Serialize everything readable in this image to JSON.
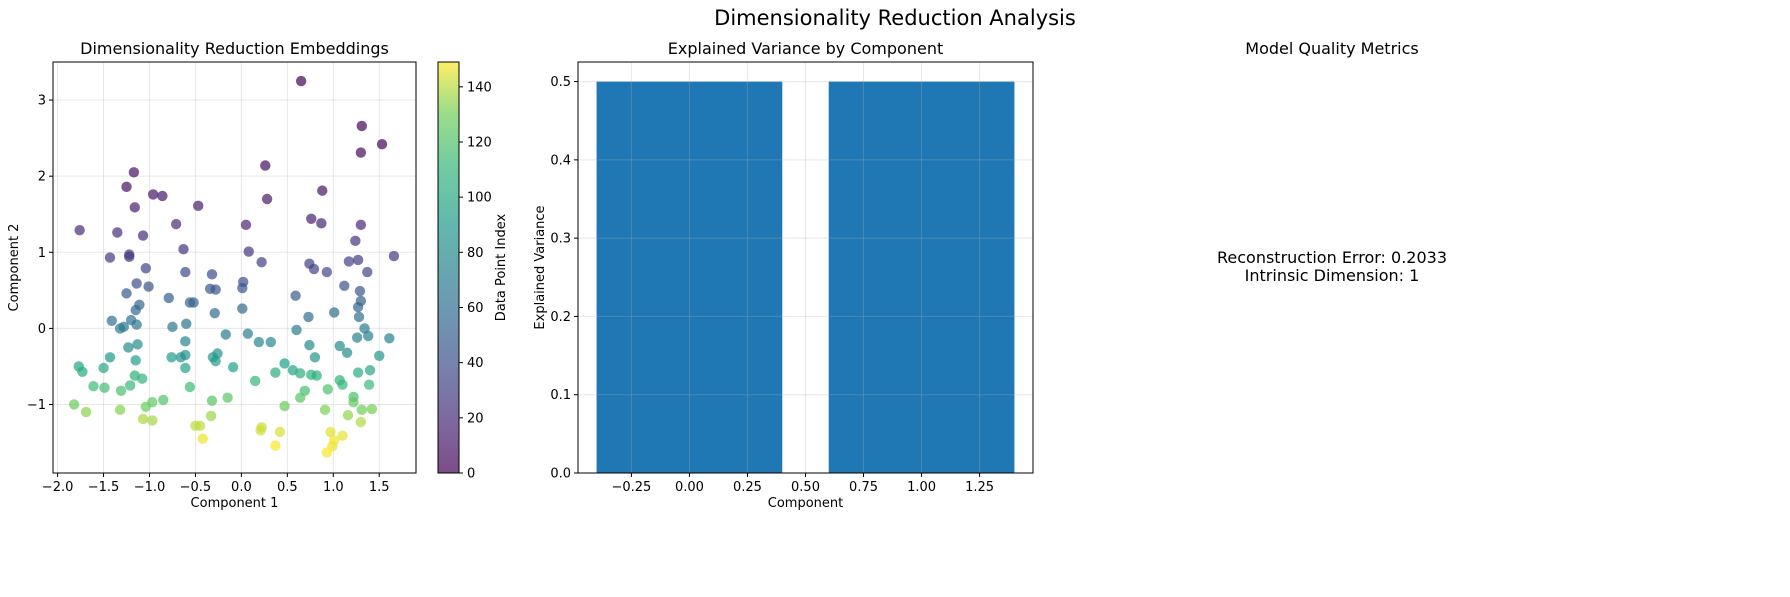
{
  "figure": {
    "title": "Dimensionality Reduction Analysis"
  },
  "chart_data": [
    {
      "type": "scatter",
      "title": "Dimensionality Reduction Embeddings",
      "xlabel": "Component 1",
      "ylabel": "Component 2",
      "xlim": [
        -2.05,
        1.9
      ],
      "ylim": [
        -1.9,
        3.5
      ],
      "xticks": [
        -2.0,
        -1.5,
        -1.0,
        -0.5,
        0.0,
        0.5,
        1.0,
        1.5
      ],
      "xtick_labels": [
        "−2.0",
        "−1.5",
        "−1.0",
        "−0.5",
        "0.0",
        "0.5",
        "1.0",
        "1.5"
      ],
      "yticks": [
        -1,
        0,
        1,
        2,
        3
      ],
      "ytick_labels": [
        "−1",
        "0",
        "1",
        "2",
        "3"
      ],
      "grid": true,
      "colormap": "viridis",
      "colorbar": {
        "label": "Data Point Index",
        "range": [
          0,
          149
        ],
        "ticks": [
          0,
          20,
          40,
          60,
          80,
          100,
          120,
          140
        ],
        "tick_labels": [
          "0",
          "20",
          "40",
          "60",
          "80",
          "100",
          "120",
          "140"
        ]
      },
      "points": [
        [
          0.65,
          3.25,
          0
        ],
        [
          1.31,
          2.66,
          2
        ],
        [
          1.53,
          2.42,
          3
        ],
        [
          1.3,
          2.31,
          5
        ],
        [
          0.26,
          2.14,
          6
        ],
        [
          -1.17,
          2.05,
          7
        ],
        [
          -1.25,
          1.86,
          8
        ],
        [
          0.88,
          1.81,
          9
        ],
        [
          -0.96,
          1.76,
          10
        ],
        [
          -0.86,
          1.74,
          11
        ],
        [
          0.28,
          1.7,
          12
        ],
        [
          -0.47,
          1.61,
          13
        ],
        [
          -1.16,
          1.59,
          14
        ],
        [
          0.76,
          1.44,
          15
        ],
        [
          0.87,
          1.38,
          16
        ],
        [
          0.05,
          1.36,
          17
        ],
        [
          1.3,
          1.36,
          18
        ],
        [
          -0.71,
          1.37,
          19
        ],
        [
          -1.76,
          1.29,
          20
        ],
        [
          -1.35,
          1.26,
          21
        ],
        [
          -1.07,
          1.22,
          22
        ],
        [
          1.24,
          1.15,
          23
        ],
        [
          -0.63,
          1.04,
          24
        ],
        [
          0.08,
          1.01,
          25
        ],
        [
          -1.22,
          0.97,
          26
        ],
        [
          1.66,
          0.95,
          27
        ],
        [
          -1.43,
          0.93,
          28
        ],
        [
          -1.22,
          0.94,
          29
        ],
        [
          1.27,
          0.9,
          30
        ],
        [
          0.22,
          0.87,
          31
        ],
        [
          1.17,
          0.88,
          32
        ],
        [
          0.74,
          0.85,
          33
        ],
        [
          0.79,
          0.78,
          34
        ],
        [
          -1.04,
          0.79,
          35
        ],
        [
          1.37,
          0.74,
          36
        ],
        [
          0.93,
          0.74,
          37
        ],
        [
          -0.32,
          0.71,
          38
        ],
        [
          -0.61,
          0.74,
          39
        ],
        [
          0.02,
          0.61,
          40
        ],
        [
          -1.14,
          0.59,
          41
        ],
        [
          1.12,
          0.56,
          42
        ],
        [
          -1.01,
          0.55,
          43
        ],
        [
          0.01,
          0.53,
          44
        ],
        [
          -0.28,
          0.51,
          45
        ],
        [
          -0.34,
          0.52,
          46
        ],
        [
          1.29,
          0.49,
          47
        ],
        [
          -1.25,
          0.46,
          48
        ],
        [
          0.59,
          0.43,
          49
        ],
        [
          -0.79,
          0.4,
          50
        ],
        [
          1.3,
          0.36,
          51
        ],
        [
          -0.56,
          0.34,
          52
        ],
        [
          -0.52,
          0.34,
          53
        ],
        [
          -1.11,
          0.31,
          54
        ],
        [
          1.27,
          0.28,
          55
        ],
        [
          0.01,
          0.26,
          56
        ],
        [
          -1.15,
          0.24,
          57
        ],
        [
          1.01,
          0.21,
          58
        ],
        [
          -0.29,
          0.2,
          59
        ],
        [
          0.73,
          0.15,
          60
        ],
        [
          1.28,
          0.15,
          61
        ],
        [
          -1.41,
          0.1,
          62
        ],
        [
          -1.2,
          0.11,
          63
        ],
        [
          -0.6,
          0.06,
          64
        ],
        [
          -1.14,
          0.05,
          65
        ],
        [
          -1.28,
          0.02,
          66
        ],
        [
          -0.75,
          0.02,
          67
        ],
        [
          -1.32,
          0.0,
          68
        ],
        [
          1.34,
          0.0,
          69
        ],
        [
          0.6,
          -0.02,
          70
        ],
        [
          -0.17,
          -0.08,
          71
        ],
        [
          0.07,
          -0.07,
          72
        ],
        [
          1.38,
          -0.1,
          73
        ],
        [
          1.26,
          -0.12,
          74
        ],
        [
          1.61,
          -0.13,
          75
        ],
        [
          -0.61,
          -0.17,
          76
        ],
        [
          0.19,
          -0.18,
          77
        ],
        [
          0.32,
          -0.18,
          78
        ],
        [
          0.74,
          -0.22,
          79
        ],
        [
          1.07,
          -0.23,
          80
        ],
        [
          -1.23,
          -0.25,
          81
        ],
        [
          -1.13,
          -0.21,
          82
        ],
        [
          1.15,
          -0.32,
          83
        ],
        [
          -0.26,
          -0.33,
          84
        ],
        [
          -0.61,
          -0.35,
          85
        ],
        [
          -0.66,
          -0.38,
          86
        ],
        [
          0.8,
          -0.38,
          87
        ],
        [
          1.5,
          -0.36,
          88
        ],
        [
          -0.31,
          -0.38,
          89
        ],
        [
          -1.43,
          -0.38,
          90
        ],
        [
          -0.76,
          -0.38,
          91
        ],
        [
          -0.28,
          -0.43,
          92
        ],
        [
          -1.15,
          -0.42,
          93
        ],
        [
          0.47,
          -0.46,
          94
        ],
        [
          -0.09,
          -0.51,
          95
        ],
        [
          -1.77,
          -0.5,
          96
        ],
        [
          -0.61,
          -0.52,
          97
        ],
        [
          0.56,
          -0.55,
          98
        ],
        [
          1.4,
          -0.55,
          99
        ],
        [
          -1.5,
          -0.52,
          100
        ],
        [
          0.37,
          -0.58,
          101
        ],
        [
          -1.73,
          -0.57,
          102
        ],
        [
          1.27,
          -0.58,
          103
        ],
        [
          0.64,
          -0.59,
          104
        ],
        [
          0.82,
          -0.62,
          105
        ],
        [
          0.76,
          -0.61,
          106
        ],
        [
          -1.16,
          -0.62,
          107
        ],
        [
          1.07,
          -0.68,
          108
        ],
        [
          -1.08,
          -0.66,
          109
        ],
        [
          0.15,
          -0.69,
          110
        ],
        [
          -1.21,
          -0.75,
          111
        ],
        [
          1.1,
          -0.74,
          112
        ],
        [
          1.39,
          -0.74,
          113
        ],
        [
          -0.56,
          -0.77,
          114
        ],
        [
          -1.61,
          -0.76,
          115
        ],
        [
          -1.49,
          -0.78,
          116
        ],
        [
          0.69,
          -0.82,
          117
        ],
        [
          -1.31,
          -0.82,
          118
        ],
        [
          0.94,
          -0.8,
          119
        ],
        [
          1.22,
          -0.9,
          120
        ],
        [
          -0.85,
          -0.94,
          121
        ],
        [
          0.64,
          -0.91,
          122
        ],
        [
          -0.32,
          -0.95,
          123
        ],
        [
          -0.15,
          -0.91,
          124
        ],
        [
          -0.97,
          -0.97,
          125
        ],
        [
          1.22,
          -0.97,
          126
        ],
        [
          -1.04,
          -1.03,
          127
        ],
        [
          -1.82,
          -1.0,
          128
        ],
        [
          0.47,
          -1.02,
          129
        ],
        [
          1.31,
          -1.07,
          130
        ],
        [
          1.42,
          -1.06,
          131
        ],
        [
          0.91,
          -1.07,
          132
        ],
        [
          -1.32,
          -1.07,
          133
        ],
        [
          -1.69,
          -1.1,
          134
        ],
        [
          1.16,
          -1.14,
          135
        ],
        [
          -0.33,
          -1.15,
          136
        ],
        [
          -0.97,
          -1.21,
          137
        ],
        [
          -1.07,
          -1.19,
          138
        ],
        [
          1.3,
          -1.23,
          139
        ],
        [
          -0.5,
          -1.28,
          140
        ],
        [
          -0.45,
          -1.28,
          141
        ],
        [
          0.22,
          -1.3,
          142
        ],
        [
          0.21,
          -1.34,
          143
        ],
        [
          0.42,
          -1.36,
          144
        ],
        [
          0.97,
          -1.36,
          145
        ],
        [
          1.1,
          -1.41,
          146
        ],
        [
          -0.42,
          -1.45,
          147
        ],
        [
          1.01,
          -1.47,
          148
        ],
        [
          0.37,
          -1.54,
          149
        ],
        [
          0.99,
          -1.55,
          147
        ],
        [
          0.93,
          -1.63,
          149
        ]
      ]
    },
    {
      "type": "bar",
      "title": "Explained Variance by Component",
      "xlabel": "Component",
      "ylabel": "Explained Variance",
      "categories": [
        0,
        1
      ],
      "values": [
        0.5,
        0.5
      ],
      "bar_width": 0.8,
      "color": "#1f77b4",
      "xlim": [
        -0.48,
        1.48
      ],
      "ylim": [
        0,
        0.525
      ],
      "xticks": [
        -0.25,
        0.0,
        0.25,
        0.5,
        0.75,
        1.0,
        1.25
      ],
      "xtick_labels": [
        "−0.25",
        "0.00",
        "0.25",
        "0.50",
        "0.75",
        "1.00",
        "1.25"
      ],
      "yticks": [
        0.0,
        0.1,
        0.2,
        0.3,
        0.4,
        0.5
      ],
      "ytick_labels": [
        "0.0",
        "0.1",
        "0.2",
        "0.3",
        "0.4",
        "0.5"
      ],
      "grid": true
    }
  ],
  "metrics_panel": {
    "title": "Model Quality Metrics",
    "lines": [
      "Reconstruction Error: 0.2033",
      "Intrinsic Dimension: 1"
    ]
  }
}
